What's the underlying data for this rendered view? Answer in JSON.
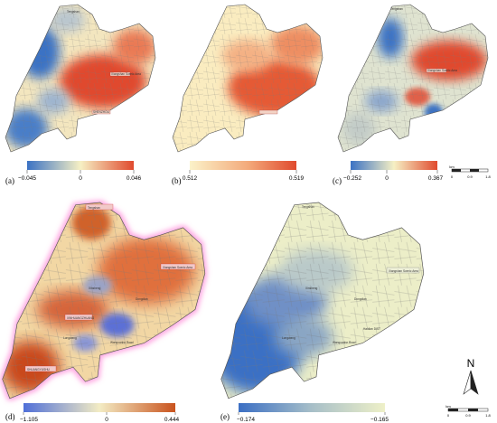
{
  "panels": [
    {
      "id": "a",
      "label": "(a)",
      "min": "−0.045",
      "mid": "0",
      "max": "0.046",
      "colors": [
        "#3b72c4",
        "#f6f0c4",
        "#e04a2e"
      ]
    },
    {
      "id": "b",
      "label": "(b)",
      "min": "0.512",
      "mid": "",
      "max": "0.519",
      "colors": [
        "#fbf2c9",
        "#f3a97a",
        "#e04a2e"
      ]
    },
    {
      "id": "c",
      "label": "(c)",
      "min": "−0.252",
      "mid": "0",
      "max": "0.367",
      "colors": [
        "#3b72c4",
        "#f6f0c4",
        "#e04a2e"
      ]
    },
    {
      "id": "d",
      "label": "(d)",
      "min": "−1.105",
      "mid": "0",
      "max": "0.444",
      "colors": [
        "#4f6fd8",
        "#f3ecc4",
        "#c9531e"
      ]
    },
    {
      "id": "e",
      "label": "(e)",
      "min": "−0.174",
      "mid": "",
      "max": "−0.165",
      "colors": [
        "#3b6fc4",
        "#a7bfc8",
        "#eef0c8"
      ]
    }
  ],
  "place_labels": {
    "a": [
      "Xiangshan Scenic Area",
      "SHENZHOU",
      "Tengshan"
    ],
    "c": [
      "Xiangshan Scenic Area",
      "Tengshan"
    ],
    "d": [
      "Tengshan",
      "Xiangshan Scenic Area",
      "Xinsheng",
      "Dongdian",
      "Wanquanhe Road",
      "XINHUANGZHUANG",
      "Longwang",
      "SHUANGYUSHU"
    ],
    "e": [
      "Tengshan",
      "Xiangshan Scenic Area",
      "Xinsheng",
      "Dongdian",
      "Wanquanhe Road",
      "Longwang",
      "Haidian DIST"
    ]
  },
  "scale_bars": [
    {
      "ticks": [
        "0",
        "0.9",
        "1.8"
      ],
      "unit": "km"
    },
    {
      "ticks": [
        "0",
        "0.9",
        "1.8"
      ],
      "unit": "km"
    }
  ],
  "north_arrow": {
    "letter": "N",
    "icon": "north-arrow-icon"
  },
  "colors": {
    "boundary": "#555555",
    "outside": "#ffffff"
  }
}
